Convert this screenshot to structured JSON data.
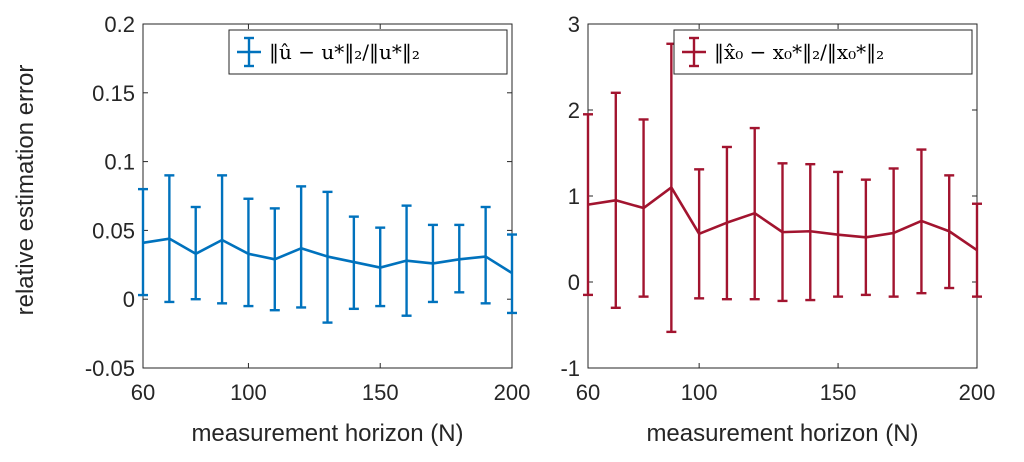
{
  "chart_data": [
    {
      "type": "line",
      "subtype": "errorbar",
      "x": [
        60,
        70,
        80,
        90,
        100,
        110,
        120,
        130,
        140,
        150,
        160,
        170,
        180,
        190,
        200
      ],
      "series": [
        {
          "name": "‖û − u*‖₂/‖u*‖₂",
          "color": "#0072BD",
          "values": [
            0.041,
            0.044,
            0.033,
            0.043,
            0.033,
            0.029,
            0.037,
            0.031,
            0.027,
            0.023,
            0.028,
            0.026,
            0.029,
            0.031,
            0.019
          ],
          "err_lower": [
            0.003,
            -0.002,
            0.0,
            -0.003,
            -0.005,
            -0.008,
            -0.006,
            -0.017,
            -0.007,
            -0.005,
            -0.012,
            -0.002,
            0.005,
            -0.003,
            -0.01
          ],
          "err_upper": [
            0.08,
            0.09,
            0.067,
            0.09,
            0.073,
            0.066,
            0.082,
            0.078,
            0.06,
            0.052,
            0.068,
            0.054,
            0.054,
            0.067,
            0.047
          ]
        }
      ],
      "xlabel": "measurement horizon (N)",
      "ylabel": "relative estimation error",
      "xlim": [
        60,
        200
      ],
      "ylim": [
        -0.05,
        0.2
      ],
      "xticks": [
        "60",
        "100",
        "150",
        "200"
      ],
      "yticks": [
        "-0.05",
        "0",
        "0.05",
        "0.1",
        "0.15",
        "0.2"
      ],
      "grid": false,
      "legend_position": "top-right"
    },
    {
      "type": "line",
      "subtype": "errorbar",
      "x": [
        60,
        70,
        80,
        90,
        100,
        110,
        120,
        130,
        140,
        150,
        160,
        170,
        180,
        190,
        200
      ],
      "series": [
        {
          "name": "‖x̂₀ − x₀*‖₂/‖x₀*‖₂",
          "color": "#A2142F",
          "values": [
            0.9,
            0.95,
            0.86,
            1.1,
            0.56,
            0.69,
            0.8,
            0.58,
            0.59,
            0.55,
            0.52,
            0.57,
            0.71,
            0.59,
            0.37
          ],
          "err_lower": [
            -0.15,
            -0.3,
            -0.17,
            -0.58,
            -0.19,
            -0.2,
            -0.2,
            -0.22,
            -0.21,
            -0.17,
            -0.15,
            -0.17,
            -0.13,
            -0.07,
            -0.17
          ],
          "err_upper": [
            1.95,
            2.2,
            1.89,
            2.77,
            1.31,
            1.57,
            1.79,
            1.38,
            1.37,
            1.28,
            1.19,
            1.32,
            1.54,
            1.24,
            0.91
          ]
        }
      ],
      "xlabel": "measurement horizon (N)",
      "ylabel": "",
      "xlim": [
        60,
        200
      ],
      "ylim": [
        -1,
        3
      ],
      "xticks": [
        "60",
        "100",
        "150",
        "200"
      ],
      "yticks": [
        "-1",
        "0",
        "1",
        "2",
        "3"
      ],
      "grid": false,
      "legend_position": "top-right"
    }
  ]
}
